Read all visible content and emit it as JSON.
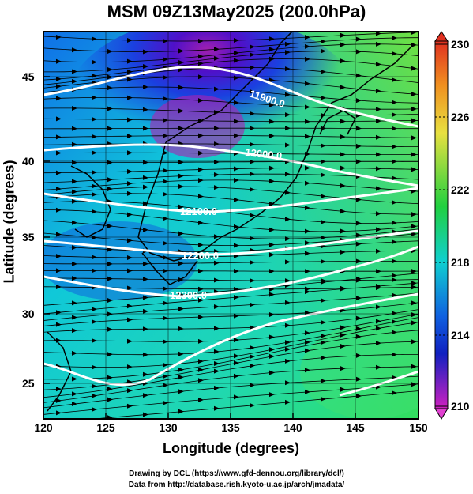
{
  "title": "MSM 09Z13May2025 (200.0hPa)",
  "x_label": "Longitude (degrees)",
  "y_label": "Latitude  (degrees)",
  "x_ticks": [
    "120",
    "125",
    "130",
    "135",
    "140",
    "145",
    "150"
  ],
  "y_ticks": [
    "25",
    "30",
    "35",
    "40",
    "45"
  ],
  "colorbar_ticks": [
    "230",
    "226",
    "222",
    "218",
    "214",
    "210"
  ],
  "contour_labels": [
    "11900.0",
    "12000.0",
    "12100.0",
    "12200.0",
    "12300.0"
  ],
  "credit_line1": "Drawing by DCL (https://www.gfd-dennou.org/library/dcl/)",
  "credit_line2": "Data from http://database.rish.kyoto-u.ac.jp/arch/jmadata/",
  "map_extent": {
    "lon": [
      120,
      150
    ],
    "lat": [
      22.5,
      48
    ]
  },
  "colorbar_range": [
    210,
    230
  ],
  "colors": {
    "low": "#c000c0",
    "mid_low": "#1020d0",
    "mid": "#10d0d0",
    "high": "#40e020",
    "top": "#e05030",
    "contour": "#ffffff"
  }
}
